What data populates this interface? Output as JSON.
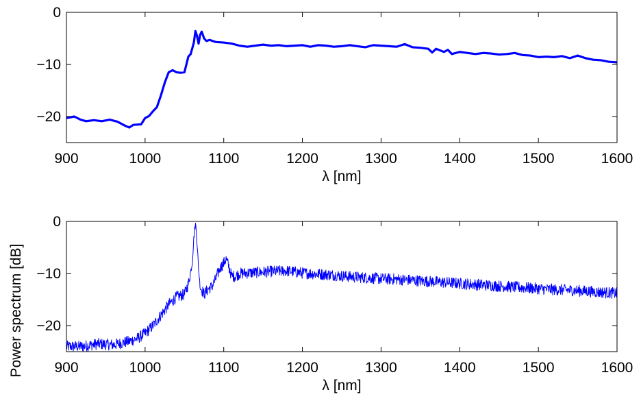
{
  "chart_data": [
    {
      "type": "line",
      "xlabel": "λ [nm]",
      "ylabel": "",
      "xlim": [
        900,
        1600
      ],
      "ylim": [
        -25,
        0
      ],
      "xticks": [
        900,
        1000,
        1100,
        1200,
        1300,
        1400,
        1500,
        1600
      ],
      "yticks": [
        -20,
        -10,
        0
      ],
      "ytick_labels": [
        "−20",
        "−10",
        "0"
      ],
      "grid": false,
      "color": "#0000ff",
      "series": [
        {
          "x": [
            900,
            910,
            918,
            925,
            935,
            945,
            955,
            965,
            975,
            980,
            985,
            995,
            1000,
            1005,
            1010,
            1015,
            1020,
            1025,
            1030,
            1035,
            1040,
            1045,
            1050,
            1055,
            1058,
            1062,
            1064,
            1066,
            1068,
            1070,
            1072,
            1075,
            1078,
            1082,
            1090,
            1100,
            1110,
            1120,
            1130,
            1140,
            1150,
            1160,
            1170,
            1180,
            1190,
            1200,
            1210,
            1220,
            1230,
            1240,
            1250,
            1260,
            1270,
            1280,
            1290,
            1300,
            1310,
            1320,
            1330,
            1340,
            1350,
            1360,
            1365,
            1370,
            1380,
            1385,
            1390,
            1400,
            1410,
            1420,
            1430,
            1440,
            1450,
            1460,
            1470,
            1480,
            1490,
            1500,
            1510,
            1520,
            1530,
            1540,
            1550,
            1560,
            1570,
            1580,
            1590,
            1600
          ],
          "values": [
            -20.3,
            -20.0,
            -20.6,
            -20.9,
            -20.7,
            -20.9,
            -20.6,
            -21.0,
            -21.8,
            -22.1,
            -21.6,
            -21.5,
            -20.3,
            -19.9,
            -19.0,
            -18.2,
            -16.0,
            -13.5,
            -11.5,
            -11.1,
            -11.5,
            -11.6,
            -11.5,
            -8.5,
            -8.0,
            -5.8,
            -3.6,
            -4.5,
            -6.0,
            -4.3,
            -3.7,
            -5.0,
            -5.5,
            -5.3,
            -5.7,
            -5.8,
            -6.0,
            -6.4,
            -6.6,
            -6.4,
            -6.2,
            -6.4,
            -6.3,
            -6.5,
            -6.4,
            -6.3,
            -6.6,
            -6.3,
            -6.4,
            -6.6,
            -6.5,
            -6.3,
            -6.5,
            -6.7,
            -6.3,
            -6.4,
            -6.5,
            -6.6,
            -6.1,
            -6.7,
            -6.8,
            -7.0,
            -7.7,
            -7.0,
            -7.6,
            -7.2,
            -8.0,
            -7.6,
            -7.8,
            -8.0,
            -7.8,
            -7.9,
            -8.1,
            -8.0,
            -7.8,
            -8.2,
            -8.3,
            -8.6,
            -8.5,
            -8.6,
            -8.4,
            -8.8,
            -8.3,
            -8.8,
            -9.1,
            -9.2,
            -9.5,
            -9.6
          ]
        }
      ]
    },
    {
      "type": "line",
      "xlabel": "λ [nm]",
      "ylabel": "Power spectrum [dB]",
      "xlim": [
        900,
        1600
      ],
      "ylim": [
        -25,
        0
      ],
      "xticks": [
        900,
        1000,
        1100,
        1200,
        1300,
        1400,
        1500,
        1600
      ],
      "yticks": [
        -20,
        -10,
        0
      ],
      "ytick_labels": [
        "−20",
        "−10",
        "0"
      ],
      "grid": false,
      "color": "#0000ff",
      "series": [
        {
          "x": [
            900,
            920,
            940,
            960,
            980,
            990,
            1000,
            1010,
            1020,
            1030,
            1040,
            1050,
            1055,
            1060,
            1062,
            1064,
            1065,
            1066,
            1068,
            1070,
            1075,
            1080,
            1085,
            1090,
            1095,
            1100,
            1103,
            1106,
            1110,
            1115,
            1120,
            1140,
            1160,
            1180,
            1200,
            1220,
            1240,
            1260,
            1280,
            1300,
            1320,
            1340,
            1360,
            1380,
            1400,
            1420,
            1440,
            1460,
            1480,
            1500,
            1520,
            1540,
            1560,
            1580,
            1600
          ],
          "values": [
            -24.0,
            -24.0,
            -23.5,
            -23.7,
            -23.0,
            -22.5,
            -21.5,
            -20.0,
            -18.0,
            -16.0,
            -14.5,
            -14.0,
            -12.0,
            -8.0,
            -3.0,
            -0.5,
            -1.5,
            -4.0,
            -9.0,
            -12.5,
            -14.0,
            -13.0,
            -12.5,
            -11.0,
            -9.0,
            -8.0,
            -7.2,
            -8.5,
            -10.5,
            -10.5,
            -10.0,
            -9.8,
            -9.6,
            -9.5,
            -9.9,
            -10.1,
            -10.3,
            -10.6,
            -10.8,
            -11.0,
            -11.1,
            -11.3,
            -11.5,
            -11.7,
            -11.9,
            -12.1,
            -12.3,
            -12.5,
            -12.7,
            -12.9,
            -13.1,
            -13.2,
            -13.4,
            -13.6,
            -13.8
          ],
          "noise_db": 1.1
        }
      ]
    }
  ]
}
